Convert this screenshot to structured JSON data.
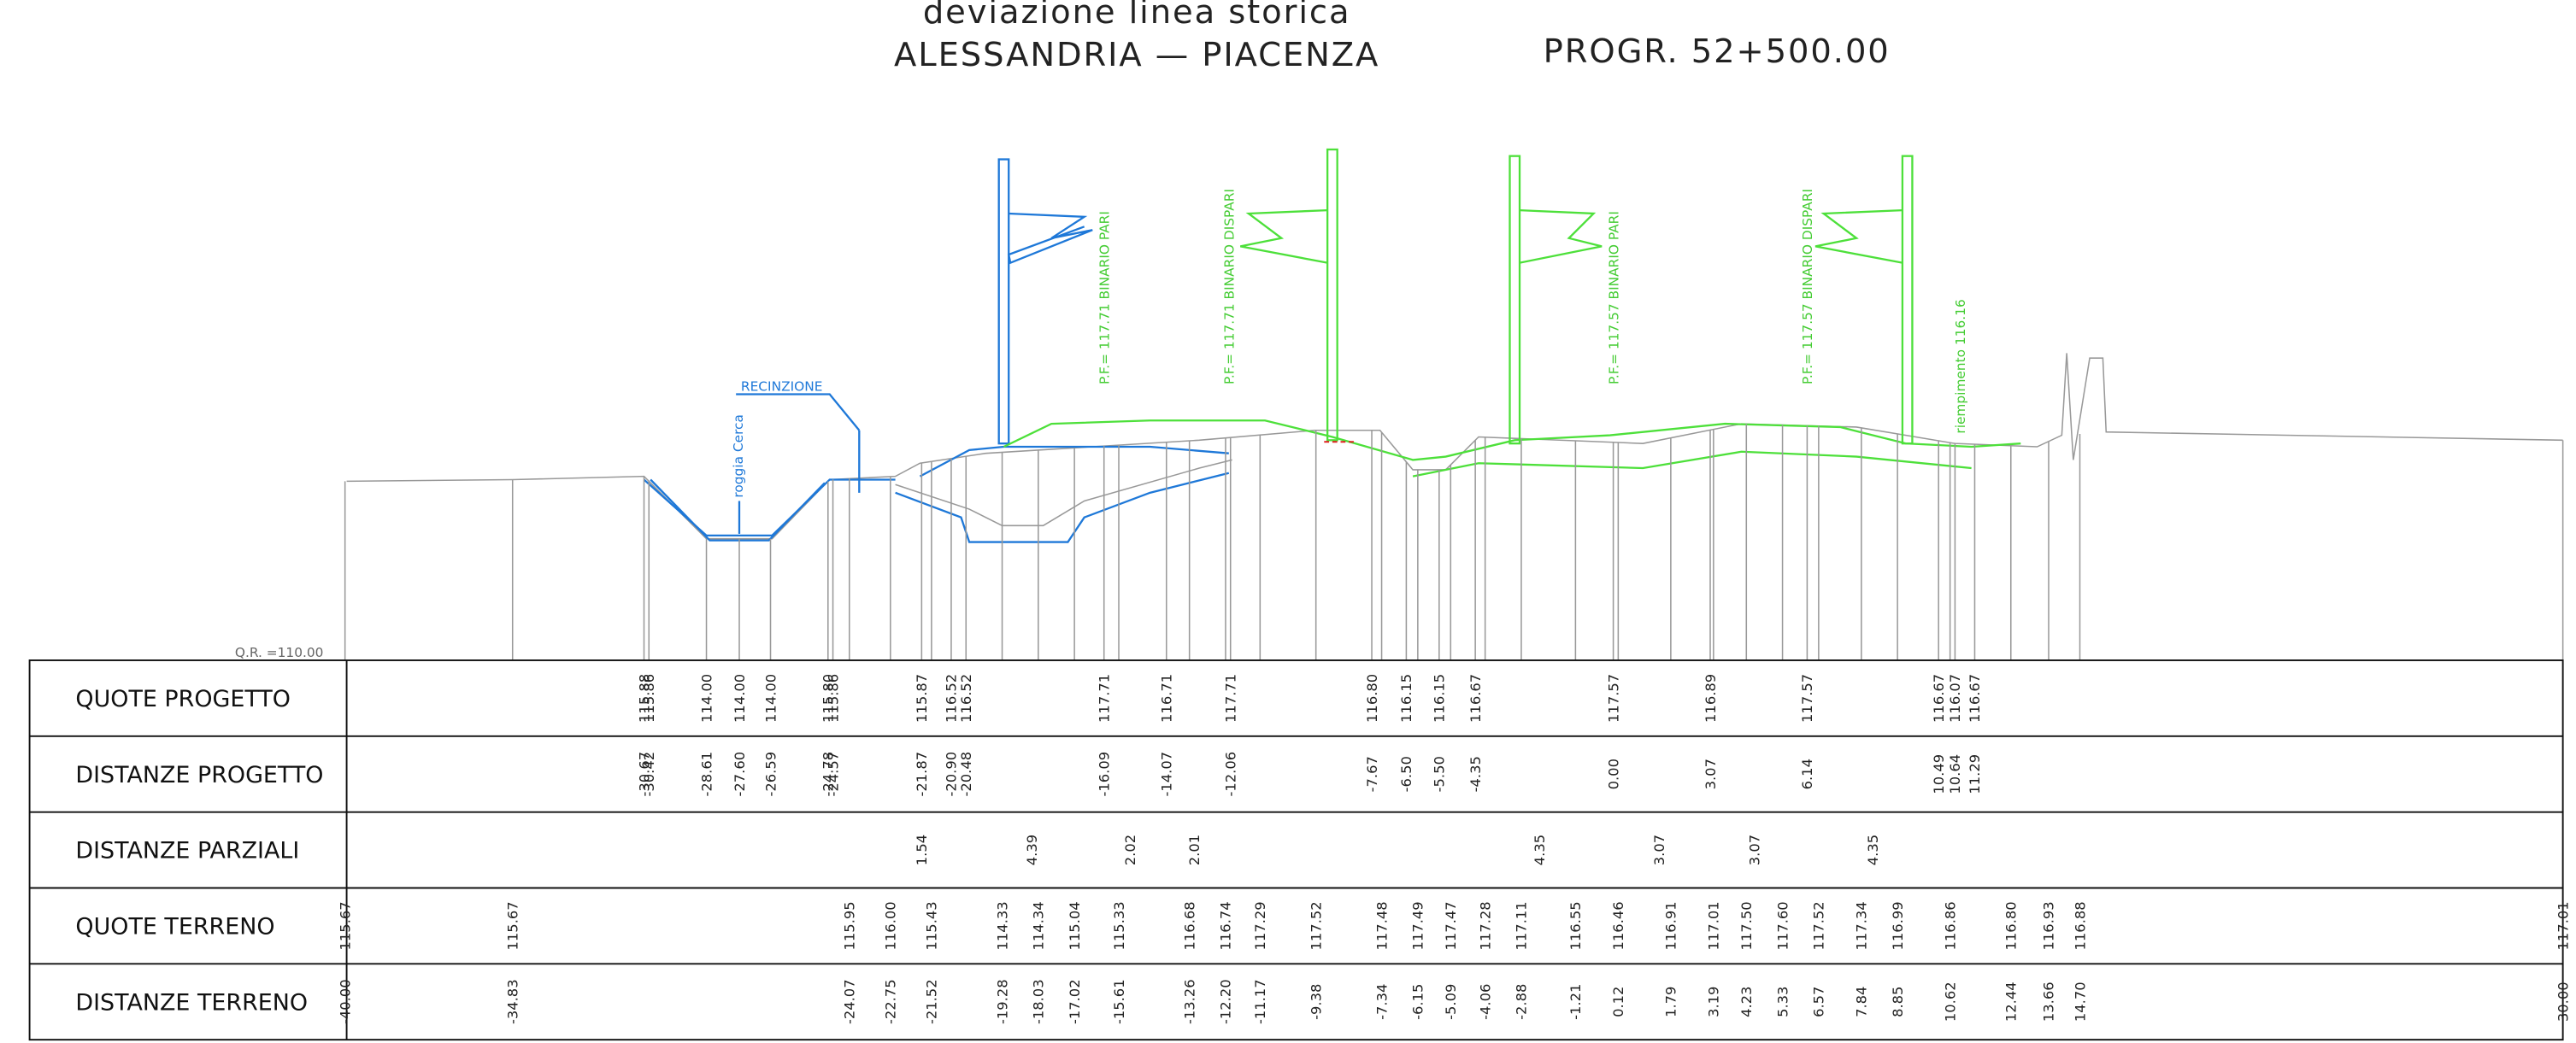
{
  "header": {
    "subtitle": "deviazione linea storica",
    "title": "ALESSANDRIA — PIACENZA",
    "progressive": "PROGR. 52+500.00"
  },
  "drawing": {
    "fence": "RECINZIONE",
    "ditch": "roggia Cerca",
    "track1": "P.F.= 117.71 BINARIO PARI",
    "track2": "P.F.= 117.71 BINARIO DISPARI",
    "track3": "P.F.= 117.57 BINARIO PARI",
    "track4": "P.F.= 117.57 BINARIO DISPARI",
    "fill": "riempimento 116.16",
    "reference_level": "Q.R. =110.00"
  },
  "table": {
    "rows": [
      {
        "label": "QUOTE PROGETTO",
        "values": [
          "115.88",
          "115.86",
          "114.00",
          "114.00",
          "114.00",
          "115.80",
          "115.86",
          "115.87",
          "116.52",
          "116.52",
          "117.71",
          "116.71",
          "117.71",
          "116.80",
          "116.15",
          "116.15",
          "116.67",
          "117.57",
          "116.89",
          "117.57",
          "116.67",
          "116.07",
          "116.67"
        ]
      },
      {
        "label": "DISTANZE PROGETTO",
        "values": [
          "-30.67",
          "-30.42",
          "-28.61",
          "-27.60",
          "-26.59",
          "-24.78",
          "-24.57",
          "-21.87",
          "-20.90",
          "-20.48",
          "-16.09",
          "-14.07",
          "-12.06",
          "-7.67",
          "-6.50",
          "-5.50",
          "-4.35",
          "0.00",
          "3.07",
          "6.14",
          "10.49",
          "10.64",
          "11.29"
        ]
      },
      {
        "label": "DISTANZE PARZIALI",
        "values": [
          "1.54",
          "4.39",
          "2.02",
          "2.01",
          "4.35",
          "3.07",
          "3.07",
          "4.35"
        ]
      },
      {
        "label": "QUOTE TERRENO",
        "values": [
          "115.67",
          "115.67",
          "115.95",
          "116.00",
          "115.43",
          "114.33",
          "114.34",
          "115.04",
          "115.33",
          "116.68",
          "116.74",
          "117.29",
          "117.52",
          "117.48",
          "117.49",
          "117.47",
          "117.28",
          "117.11",
          "116.55",
          "116.46",
          "116.91",
          "117.01",
          "117.50",
          "117.60",
          "117.52",
          "117.34",
          "116.99",
          "116.86",
          "116.80",
          "116.93",
          "116.88",
          "117.01"
        ]
      },
      {
        "label": "DISTANZE TERRENO",
        "values": [
          "-40.00",
          "-34.83",
          "-24.07",
          "-22.75",
          "-21.52",
          "-19.28",
          "-18.03",
          "-17.02",
          "-15.61",
          "-13.26",
          "-12.20",
          "-11.17",
          "-9.38",
          "-7.34",
          "-6.15",
          "-5.09",
          "-4.06",
          "-2.88",
          "-1.21",
          "0.12",
          "1.79",
          "3.19",
          "4.23",
          "5.33",
          "6.57",
          "7.84",
          "8.85",
          "10.62",
          "12.44",
          "13.66",
          "14.70",
          "30.00"
        ]
      }
    ]
  }
}
